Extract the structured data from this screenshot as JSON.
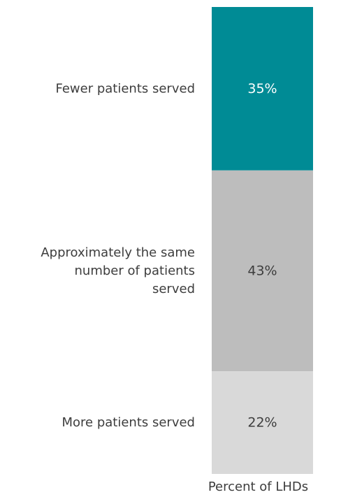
{
  "chart_data": {
    "type": "bar",
    "orientation": "stacked-100",
    "categories": [
      "Fewer patients served",
      "Approximately the same number of patients served",
      "More patients served"
    ],
    "category_label_lines": [
      [
        "Fewer patients served"
      ],
      [
        "Approximately the same",
        "number of patients",
        "served"
      ],
      [
        "More patients served"
      ]
    ],
    "values": [
      35,
      43,
      22
    ],
    "value_labels": [
      "35%",
      "43%",
      "22%"
    ],
    "colors": [
      "#008b95",
      "#bdbdbd",
      "#d9d9d9"
    ],
    "label_colors": [
      "#ffffff",
      "#3d3d3d",
      "#3d3d3d"
    ],
    "xlabel": "Percent of LHDs",
    "ylim": [
      0,
      100
    ],
    "legend": "none",
    "grid": false
  }
}
